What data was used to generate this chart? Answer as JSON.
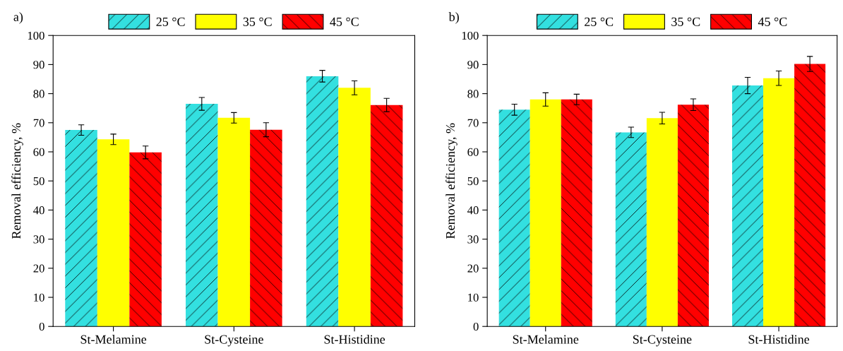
{
  "chart_data": [
    {
      "type": "bar",
      "title": "a)",
      "ylabel": "Removal efficiency, %",
      "categories": [
        "St-Melamine",
        "St-Cysteine",
        "St-Histidine"
      ],
      "ylim": [
        0,
        100
      ],
      "yticks": [
        0,
        10,
        20,
        30,
        40,
        50,
        60,
        70,
        80,
        90,
        100
      ],
      "legend": "top",
      "grid": false,
      "series": [
        {
          "name": "25 °C",
          "color": "#33e0e0",
          "values": [
            67.5,
            76.5,
            86.0
          ],
          "errors": [
            1.8,
            2.2,
            2.0
          ]
        },
        {
          "name": "35 °C",
          "color": "#ffff00",
          "values": [
            64.3,
            71.7,
            82.0
          ],
          "errors": [
            1.8,
            1.8,
            2.4
          ]
        },
        {
          "name": "45 °C",
          "color": "#ff0000",
          "values": [
            59.8,
            67.6,
            76.1
          ],
          "errors": [
            2.2,
            2.4,
            2.3
          ]
        }
      ]
    },
    {
      "type": "bar",
      "title": "b)",
      "ylabel": "Removal efficiency, %",
      "categories": [
        "St-Melamine",
        "St-Cysteine",
        "St-Histidine"
      ],
      "ylim": [
        0,
        100
      ],
      "yticks": [
        0,
        10,
        20,
        30,
        40,
        50,
        60,
        70,
        80,
        90,
        100
      ],
      "legend": "top",
      "grid": false,
      "series": [
        {
          "name": "25 °C",
          "color": "#33e0e0",
          "values": [
            74.5,
            66.7,
            82.8
          ],
          "errors": [
            1.9,
            1.8,
            2.8
          ]
        },
        {
          "name": "35 °C",
          "color": "#ffff00",
          "values": [
            78.0,
            71.6,
            85.3
          ],
          "errors": [
            2.3,
            2.0,
            2.5
          ]
        },
        {
          "name": "45 °C",
          "color": "#ff0000",
          "values": [
            78.0,
            76.2,
            90.2
          ],
          "errors": [
            1.8,
            2.0,
            2.6
          ]
        }
      ]
    }
  ]
}
